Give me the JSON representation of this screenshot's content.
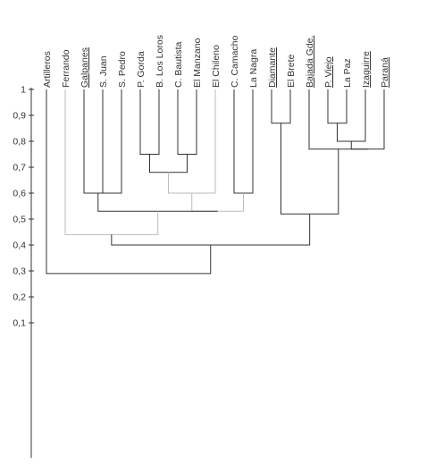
{
  "dendrogram": {
    "axis": {
      "ticks": [
        "1",
        "0,9",
        "0,8",
        "0,7",
        "0,6",
        "0,5",
        "0,4",
        "0,3",
        "0,2",
        "0,1"
      ],
      "range": [
        0,
        1
      ]
    },
    "leaves": [
      {
        "label": "Artilleros",
        "underlined": false
      },
      {
        "label": "Ferrando",
        "underlined": false
      },
      {
        "label": "Galpanes",
        "underlined": true
      },
      {
        "label": "S. Juan",
        "underlined": false
      },
      {
        "label": "S. Pedro",
        "underlined": false
      },
      {
        "label": "P. Gorda",
        "underlined": false
      },
      {
        "label": "B. Los Loros",
        "underlined": false
      },
      {
        "label": "C. Bautista",
        "underlined": false
      },
      {
        "label": "El Manzano",
        "underlined": false
      },
      {
        "label": "El Chileno",
        "underlined": false
      },
      {
        "label": "C. Camacho",
        "underlined": false
      },
      {
        "label": "La Nagra",
        "underlined": false
      },
      {
        "label": "Diamante",
        "underlined": true
      },
      {
        "label": "El Brete",
        "underlined": false
      },
      {
        "label": "Bajada Gde.",
        "underlined": true
      },
      {
        "label": "P. Viejo",
        "underlined": true
      },
      {
        "label": "La Paz",
        "underlined": false
      },
      {
        "label": "Izaguirre",
        "underlined": true
      },
      {
        "label": "Paraná",
        "underlined": true
      }
    ],
    "merges": [
      {
        "a": "L3",
        "b": "L4",
        "height": 0.6,
        "color": "#333333"
      },
      {
        "a": "L2",
        "b": "N0",
        "height": 0.6,
        "color": "#333333"
      },
      {
        "a": "L7",
        "b": "L8",
        "height": 0.75,
        "color": "#333333"
      },
      {
        "a": "L5",
        "b": "L6",
        "height": 0.75,
        "color": "#333333"
      },
      {
        "a": "N3",
        "b": "N2",
        "height": 0.68,
        "color": "#333333"
      },
      {
        "a": "N4",
        "b": "L9",
        "height": 0.6,
        "color": "#bbbbbb"
      },
      {
        "a": "L10",
        "b": "L11",
        "height": 0.6,
        "color": "#333333"
      },
      {
        "a": "N5",
        "b": "N6",
        "height": 0.53,
        "color": "#bbbbbb"
      },
      {
        "a": "N1",
        "b": "N7",
        "height": 0.53,
        "color": "#333333"
      },
      {
        "a": "L1",
        "b": "N8",
        "height": 0.44,
        "color": "#bbbbbb"
      },
      {
        "a": "L15",
        "b": "L16",
        "height": 0.87,
        "color": "#333333"
      },
      {
        "a": "N10",
        "b": "L17",
        "height": 0.8,
        "color": "#333333"
      },
      {
        "a": "N11",
        "b": "L18",
        "height": 0.77,
        "color": "#333333"
      },
      {
        "a": "L14",
        "b": "N12",
        "height": 0.77,
        "color": "#333333"
      },
      {
        "a": "L12",
        "b": "L13",
        "height": 0.87,
        "color": "#333333"
      },
      {
        "a": "N14",
        "b": "N13",
        "height": 0.52,
        "color": "#333333"
      },
      {
        "a": "N9",
        "b": "N15",
        "height": 0.4,
        "color": "#333333"
      },
      {
        "a": "L0",
        "b": "N16",
        "height": 0.29,
        "color": "#333333"
      }
    ]
  }
}
